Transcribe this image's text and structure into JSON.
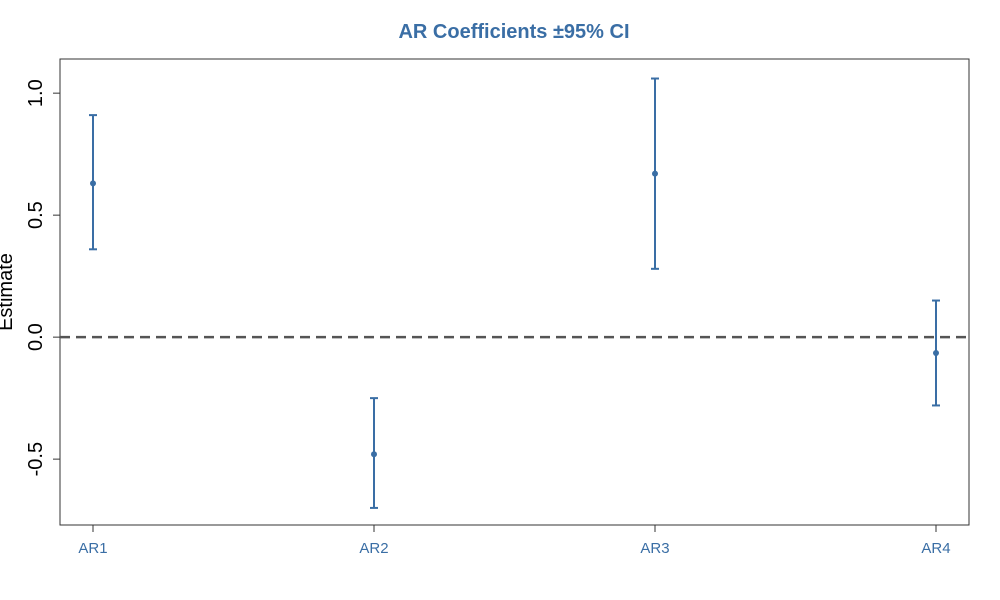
{
  "chart_data": {
    "type": "scatter",
    "title": "AR Coefficients ±95% CI",
    "xlabel": "",
    "ylabel": "Estimate",
    "categories": [
      "AR1",
      "AR2",
      "AR3",
      "AR4"
    ],
    "series": [
      {
        "estimate": [
          0.63,
          -0.48,
          0.67,
          -0.065
        ],
        "lower": [
          0.36,
          -0.7,
          0.28,
          -0.28
        ],
        "upper": [
          0.91,
          -0.25,
          1.06,
          0.15
        ]
      }
    ],
    "ylim": [
      -0.77,
      1.14
    ],
    "yticks": [
      -0.5,
      0.0,
      0.5,
      1.0
    ],
    "ytick_labels": [
      "-0.5",
      "0.0",
      "0.5",
      "1.0"
    ],
    "reference_line": 0.0,
    "grid": false,
    "colors": {
      "series": "#3a6ea5",
      "title": "#3a6ea5",
      "tick_labels_x": "#3a6ea5",
      "reference_line": "#555555",
      "frame": "#333333"
    }
  }
}
